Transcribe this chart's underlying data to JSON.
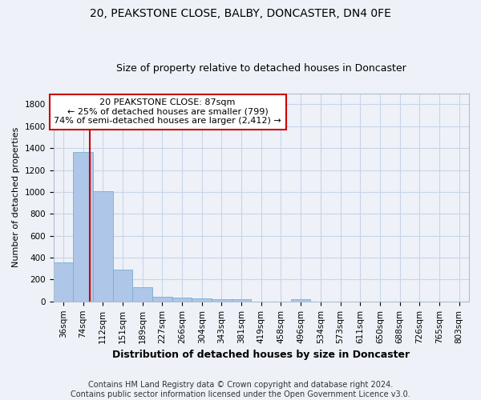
{
  "title1": "20, PEAKSTONE CLOSE, BALBY, DONCASTER, DN4 0FE",
  "title2": "Size of property relative to detached houses in Doncaster",
  "xlabel": "Distribution of detached houses by size in Doncaster",
  "ylabel": "Number of detached properties",
  "footer1": "Contains HM Land Registry data © Crown copyright and database right 2024.",
  "footer2": "Contains public sector information licensed under the Open Government Licence v3.0.",
  "bin_labels": [
    "36sqm",
    "74sqm",
    "112sqm",
    "151sqm",
    "189sqm",
    "227sqm",
    "266sqm",
    "304sqm",
    "343sqm",
    "381sqm",
    "419sqm",
    "458sqm",
    "496sqm",
    "534sqm",
    "573sqm",
    "611sqm",
    "650sqm",
    "688sqm",
    "726sqm",
    "765sqm",
    "803sqm"
  ],
  "bar_values": [
    355,
    1365,
    1010,
    290,
    130,
    40,
    35,
    30,
    20,
    18,
    0,
    0,
    22,
    0,
    0,
    0,
    0,
    0,
    0,
    0,
    0
  ],
  "bar_color": "#aec6e8",
  "bar_edge_color": "#7aadd4",
  "grid_color": "#c8d4e8",
  "bg_color": "#eef2f8",
  "vline_color": "#cc0000",
  "annotation_text": "20 PEAKSTONE CLOSE: 87sqm\n← 25% of detached houses are smaller (799)\n74% of semi-detached houses are larger (2,412) →",
  "annotation_box_color": "#cc0000",
  "ylim": [
    0,
    1900
  ],
  "yticks": [
    0,
    200,
    400,
    600,
    800,
    1000,
    1200,
    1400,
    1600,
    1800
  ],
  "title1_fontsize": 10,
  "title2_fontsize": 9,
  "xlabel_fontsize": 9,
  "ylabel_fontsize": 8,
  "tick_fontsize": 7.5,
  "annot_fontsize": 8,
  "footer_fontsize": 7
}
